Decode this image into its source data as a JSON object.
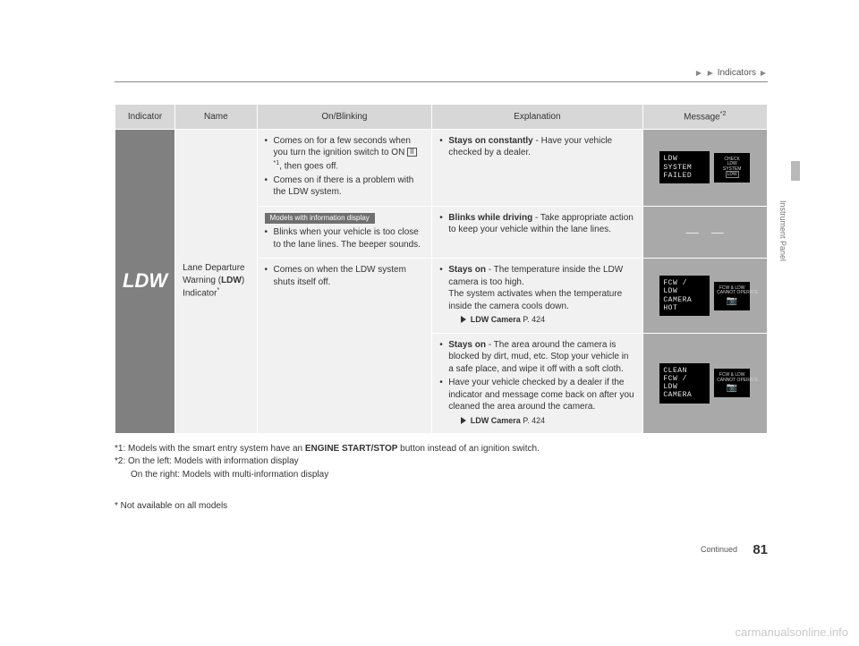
{
  "breadcrumb": {
    "section": "Indicators"
  },
  "sideLabel": "Instrument Panel",
  "table": {
    "headers": {
      "indicator": "Indicator",
      "name": "Name",
      "onblink": "On/Blinking",
      "explanation": "Explanation",
      "message": "Message",
      "message_sup": "*2"
    },
    "indicator_label": "LDW",
    "name_line1": "Lane Departure",
    "name_line2a": "Warning (",
    "name_line2b": "LDW",
    "name_line2c": ")",
    "name_line3": "Indicator",
    "name_sup": "*",
    "rows": [
      {
        "onblink_items": [
          {
            "pre": "Comes on for a few seconds when you turn the ignition switch to ON ",
            "boxed": "II",
            "sup": "*1",
            "post": ", then goes off."
          },
          {
            "text": "Comes on if there is a problem with the LDW system."
          }
        ],
        "explain_items": [
          {
            "bold": "Stays on constantly",
            "rest": " - Have your vehicle checked by a dealer."
          }
        ],
        "msg_left": "LDW\nSYSTEM\nFAILED",
        "msg_right_top": "CHECK",
        "msg_right_mid": "LDW",
        "msg_right_bot": "SYSTEM",
        "msg_right_glyph": "LDW"
      },
      {
        "badge": "Models with information display",
        "onblink_items": [
          {
            "text": "Blinks when your vehicle is too close to the lane lines. The beeper sounds."
          }
        ],
        "explain_items": [
          {
            "bold": "Blinks while driving",
            "rest": " - Take appropriate action to keep your vehicle within the lane lines."
          }
        ],
        "msg_left_dash": "—",
        "msg_right_dash": "—"
      },
      {
        "onblink_items": [
          {
            "text": "Comes on when the LDW system shuts itself off."
          }
        ],
        "explain_items": [
          {
            "bold": "Stays on",
            "rest": " - The temperature inside the LDW camera is too high.",
            "extra": "The system activates when the temperature inside the camera cools down.",
            "ref_label": "LDW Camera",
            "ref_page": " P. 424"
          }
        ],
        "msg_left": "FCW /\nLDW\nCAMERA\nHOT",
        "msg_right_top": "FCW & LDW",
        "msg_right_mid": "CANNOT OPERATE",
        "msg_right_glyph": "📷"
      },
      {
        "explain_items": [
          {
            "bold": "Stays on",
            "rest": " - The area around the camera is blocked by dirt, mud, etc. Stop your vehicle in a safe place, and wipe it off with a soft cloth."
          },
          {
            "text": "Have your vehicle checked by a dealer if the indicator and message come back on after you cleaned the area around the camera.",
            "ref_label": "LDW Camera",
            "ref_page": " P. 424"
          }
        ],
        "msg_left": "CLEAN\nFCW /\nLDW\nCAMERA",
        "msg_right_top": "FCW & LDW",
        "msg_right_mid": "CANNOT OPERATE",
        "msg_right_glyph": "📷"
      }
    ]
  },
  "footnotes": {
    "f1_pre": "*1: Models with the smart entry system have an ",
    "f1_bold": "ENGINE START/STOP",
    "f1_post": " button instead of an ignition switch.",
    "f2a": "*2: On the left: Models with information display",
    "f2b": "On the right: Models with multi-information display"
  },
  "bottomNote": "* Not available on all models",
  "continued": "Continued",
  "pageNumber": "81",
  "watermark": "carmanualsonline.info"
}
